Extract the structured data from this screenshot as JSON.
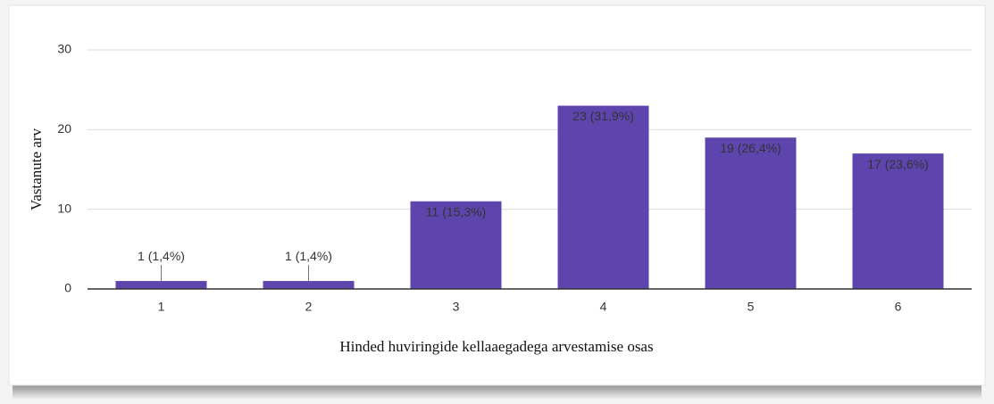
{
  "chart_data": {
    "type": "bar",
    "categories": [
      "1",
      "2",
      "3",
      "4",
      "5",
      "6"
    ],
    "values": [
      1,
      1,
      11,
      23,
      19,
      17
    ],
    "value_labels": [
      "1 (1,4%)",
      "1 (1,4%)",
      "11 (15,3%)",
      "23 (31,9%)",
      "19 (26,4%)",
      "17 (23,6%)"
    ],
    "color": "#5e44ad",
    "ylim": [
      0,
      30
    ],
    "yticks": [
      0,
      10,
      20,
      30
    ],
    "grid": true,
    "y_label": "Vastanute arv",
    "x_label": "Hinded huviringide kellaaegadega arvestamise osas"
  }
}
